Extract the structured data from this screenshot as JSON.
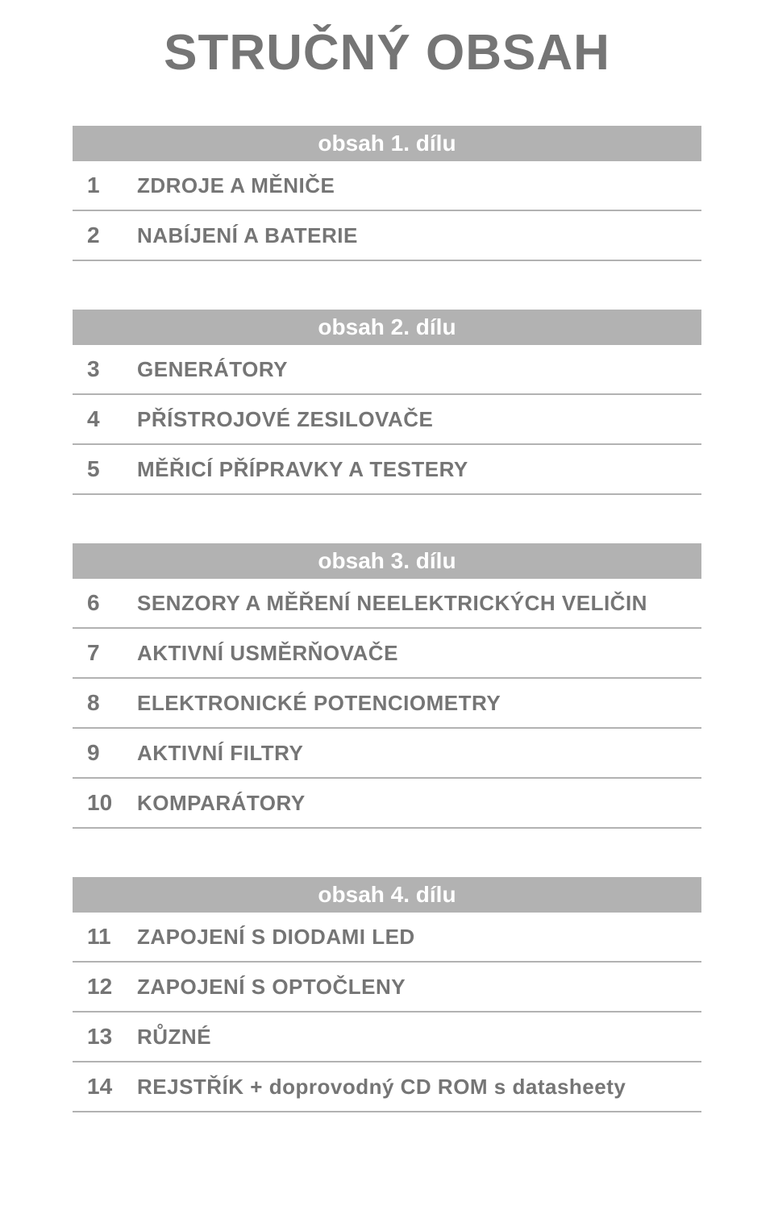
{
  "title": "STRUČNÝ OBSAH",
  "colors": {
    "text": "#757575",
    "header_bg": "#b2b2b2",
    "header_text": "#ffffff",
    "divider": "#b2b2b2",
    "background": "#ffffff"
  },
  "typography": {
    "title_fontsize": 62,
    "header_fontsize": 28,
    "row_fontsize": 26,
    "font_family": "Arial"
  },
  "blocks": [
    {
      "header": "obsah 1. dílu",
      "rows": [
        {
          "num": "1",
          "label": "ZDROJE A MĚNIČE"
        },
        {
          "num": "2",
          "label": "NABÍJENÍ A BATERIE"
        }
      ]
    },
    {
      "header": "obsah 2. dílu",
      "rows": [
        {
          "num": "3",
          "label": "GENERÁTORY"
        },
        {
          "num": "4",
          "label": "PŘÍSTROJOVÉ ZESILOVAČE"
        },
        {
          "num": "5",
          "label": "MĚŘICÍ PŘÍPRAVKY A TESTERY"
        }
      ]
    },
    {
      "header": "obsah 3. dílu",
      "rows": [
        {
          "num": "6",
          "label": "SENZORY A MĚŘENÍ NEELEKTRICKÝCH VELIČIN"
        },
        {
          "num": "7",
          "label": "AKTIVNÍ USMĚRŇOVAČE"
        },
        {
          "num": "8",
          "label": "ELEKTRONICKÉ POTENCIOMETRY"
        },
        {
          "num": "9",
          "label": "AKTIVNÍ FILTRY"
        },
        {
          "num": "10",
          "label": "KOMPARÁTORY"
        }
      ]
    },
    {
      "header": "obsah 4. dílu",
      "rows": [
        {
          "num": "11",
          "label": "ZAPOJENÍ S DIODAMI LED"
        },
        {
          "num": "12",
          "label": "ZAPOJENÍ S OPTOČLENY"
        },
        {
          "num": "13",
          "label": "RŮZNÉ"
        },
        {
          "num": "14",
          "label": "REJSTŘÍK + doprovodný CD ROM s datasheety"
        }
      ]
    }
  ]
}
